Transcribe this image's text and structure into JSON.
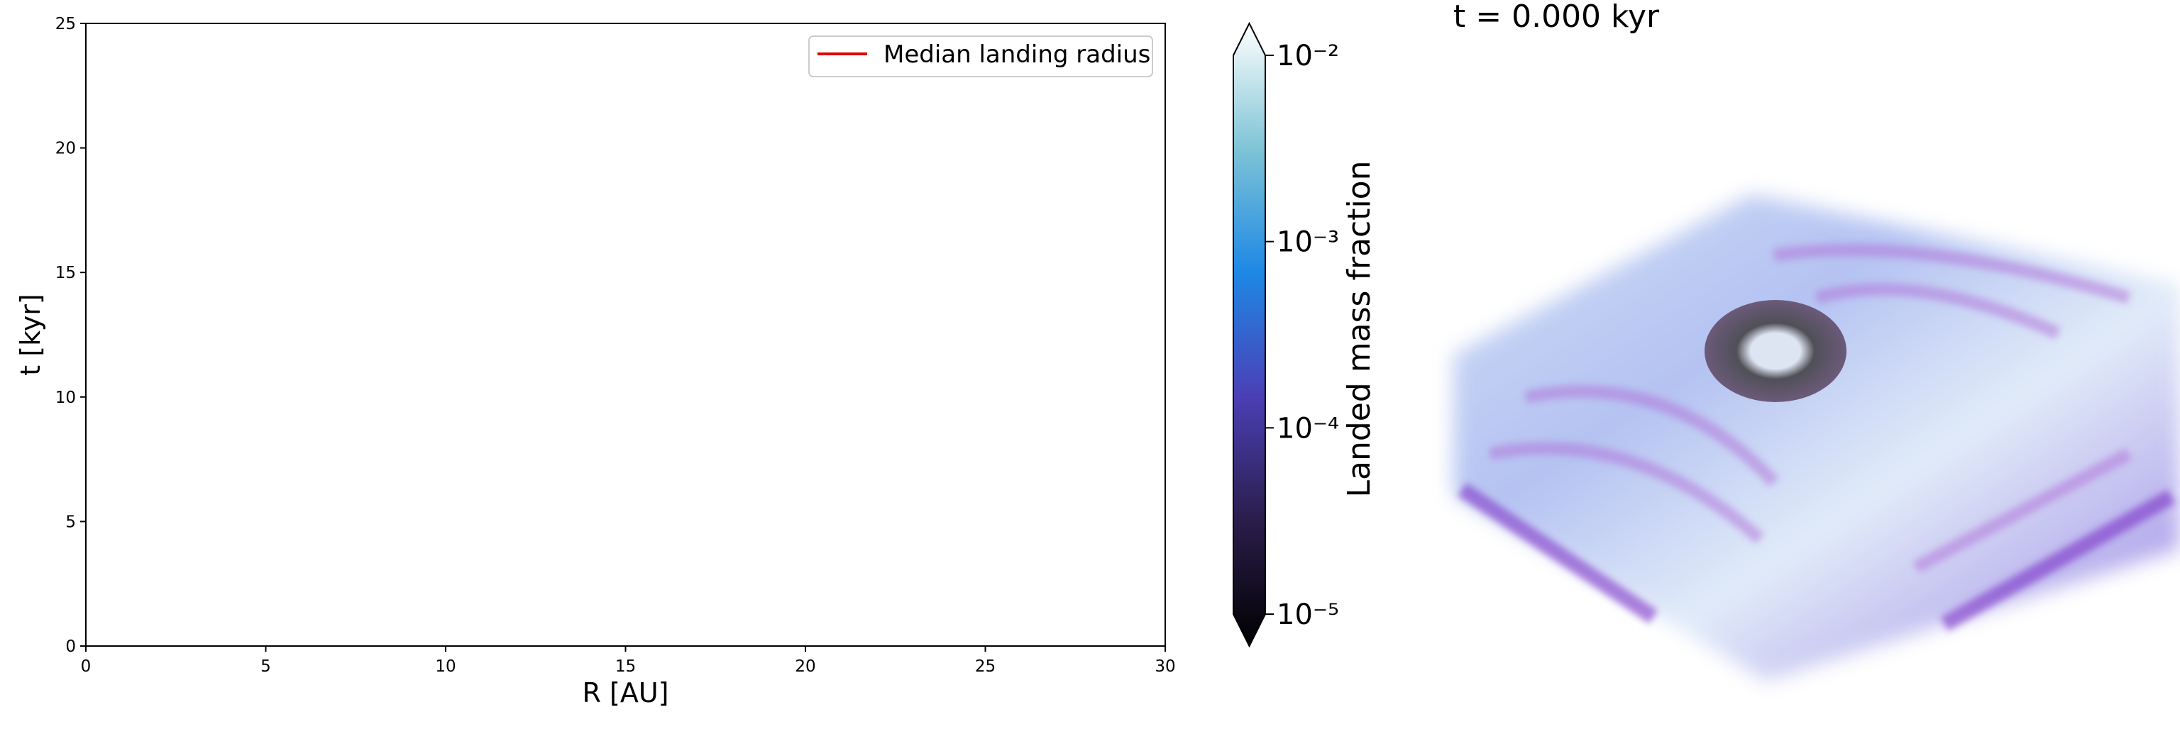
{
  "chart_data": [
    {
      "type": "line",
      "xlabel": "R [AU]",
      "ylabel": "t [kyr]",
      "xlim": [
        0,
        30
      ],
      "xticks": [
        0,
        5,
        10,
        15,
        20,
        25,
        30
      ],
      "ylim": [
        0,
        25
      ],
      "yticks": [
        0,
        5,
        10,
        15,
        20,
        25
      ],
      "series": [
        {
          "name": "Median landing radius",
          "color": "#e00000",
          "x": [],
          "values": []
        }
      ],
      "legend": "upper right"
    },
    {
      "type": "colorbar",
      "label": "Landed mass fraction",
      "log": true,
      "extend": "both",
      "lim": [
        1e-05,
        0.01
      ],
      "ticks": [
        {
          "value": 1e-05,
          "label": "10⁻⁵"
        },
        {
          "value": 0.0001,
          "label": "10⁻⁴"
        },
        {
          "value": 0.001,
          "label": "10⁻³"
        },
        {
          "value": 0.01,
          "label": "10⁻²"
        }
      ],
      "colors": [
        "#000000",
        "#2a1d4a",
        "#4b3fb5",
        "#1e88e5",
        "#7fc4d6",
        "#ffffff"
      ]
    },
    {
      "type": "render",
      "title": "t = 0.000 kyr"
    }
  ]
}
